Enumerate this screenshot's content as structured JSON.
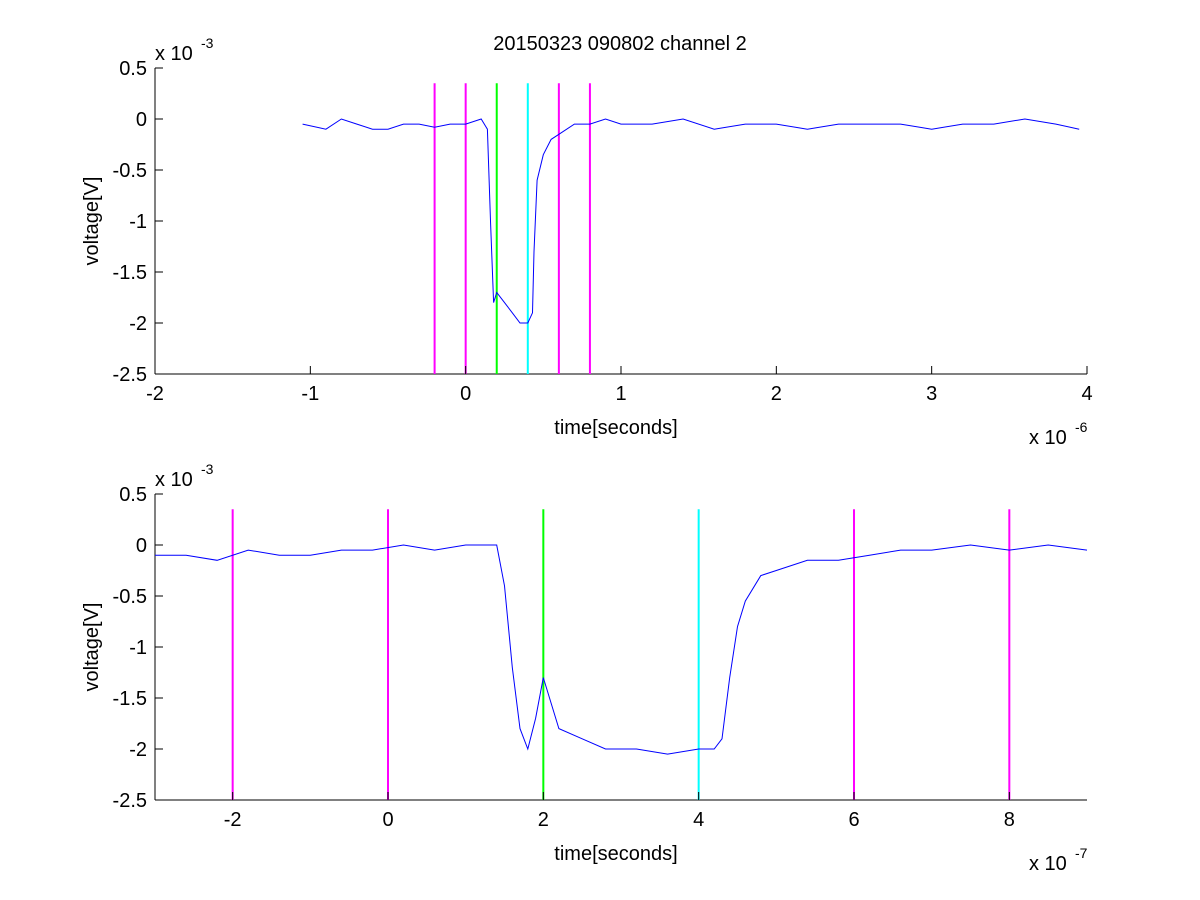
{
  "figure_title": "20150323 090802 channel 2",
  "colors": {
    "signal": "#0000ff",
    "marker_magenta": "#ff00ff",
    "marker_green": "#00ff00",
    "marker_cyan": "#00ffff",
    "axis": "#000000",
    "background": "#ffffff"
  },
  "chart_data": [
    {
      "type": "line",
      "title": "20150323 090802 channel 2",
      "xlabel": "time[seconds]",
      "ylabel": "voltage[V]",
      "x_exponent_label": "x 10",
      "x_exponent": "-6",
      "y_exponent_label": "x 10",
      "y_exponent": "-3",
      "xlim": [
        -2,
        4
      ],
      "ylim": [
        -2.5,
        0.5
      ],
      "xticks": [
        -2,
        -1,
        0,
        1,
        2,
        3,
        4
      ],
      "xtick_labels": [
        "-2",
        "-1",
        "0",
        "1",
        "2",
        "3",
        "4"
      ],
      "yticks": [
        0.5,
        0,
        -0.5,
        -1,
        -1.5,
        -2,
        -2.5
      ],
      "ytick_labels": [
        "0.5",
        "0",
        "-0.5",
        "-1",
        "-1.5",
        "-2",
        "-2.5"
      ],
      "grid": false,
      "series": [
        {
          "x": [
            -1.05,
            -0.9,
            -0.8,
            -0.7,
            -0.6,
            -0.5,
            -0.4,
            -0.3,
            -0.2,
            -0.1,
            0.0,
            0.1,
            0.14,
            0.16,
            0.18,
            0.2,
            0.25,
            0.3,
            0.35,
            0.4,
            0.43,
            0.44,
            0.46,
            0.5,
            0.55,
            0.6,
            0.7,
            0.8,
            0.9,
            1.0,
            1.2,
            1.4,
            1.6,
            1.8,
            2.0,
            2.2,
            2.4,
            2.6,
            2.8,
            3.0,
            3.2,
            3.4,
            3.6,
            3.8,
            3.95
          ],
          "y": [
            -0.05,
            -0.1,
            0.0,
            -0.05,
            -0.1,
            -0.1,
            -0.05,
            -0.05,
            -0.08,
            -0.05,
            -0.05,
            0.0,
            -0.1,
            -1.0,
            -1.8,
            -1.7,
            -1.8,
            -1.9,
            -2.0,
            -2.0,
            -1.9,
            -1.3,
            -0.6,
            -0.35,
            -0.2,
            -0.15,
            -0.05,
            -0.05,
            0.0,
            -0.05,
            -0.05,
            0.0,
            -0.1,
            -0.05,
            -0.05,
            -0.1,
            -0.05,
            -0.05,
            -0.05,
            -0.1,
            -0.05,
            -0.05,
            0.0,
            -0.05,
            -0.1
          ]
        }
      ],
      "markers": [
        {
          "x": -0.2,
          "color": "magenta"
        },
        {
          "x": 0.0,
          "color": "magenta"
        },
        {
          "x": 0.2,
          "color": "green"
        },
        {
          "x": 0.4,
          "color": "cyan"
        },
        {
          "x": 0.6,
          "color": "magenta"
        },
        {
          "x": 0.8,
          "color": "magenta"
        }
      ],
      "marker_y_range": [
        -2.5,
        0.35
      ]
    },
    {
      "type": "line",
      "title": "",
      "xlabel": "time[seconds]",
      "ylabel": "voltage[V]",
      "x_exponent_label": "x 10",
      "x_exponent": "-7",
      "y_exponent_label": "x 10",
      "y_exponent": "-3",
      "xlim": [
        -3,
        9
      ],
      "ylim": [
        -2.5,
        0.5
      ],
      "xticks": [
        -2,
        0,
        2,
        4,
        6,
        8
      ],
      "xtick_labels": [
        "-2",
        "0",
        "2",
        "4",
        "6",
        "8"
      ],
      "yticks": [
        0.5,
        0,
        -0.5,
        -1,
        -1.5,
        -2,
        -2.5
      ],
      "ytick_labels": [
        "0.5",
        "0",
        "-0.5",
        "-1",
        "-1.5",
        "-2",
        "-2.5"
      ],
      "grid": false,
      "series": [
        {
          "x": [
            -3.0,
            -2.6,
            -2.2,
            -1.8,
            -1.4,
            -1.0,
            -0.6,
            -0.2,
            0.2,
            0.6,
            1.0,
            1.4,
            1.5,
            1.6,
            1.7,
            1.8,
            1.9,
            2.0,
            2.2,
            2.5,
            2.8,
            3.2,
            3.6,
            4.0,
            4.2,
            4.3,
            4.4,
            4.5,
            4.6,
            4.8,
            5.0,
            5.4,
            5.8,
            6.2,
            6.6,
            7.0,
            7.5,
            8.0,
            8.5,
            9.0
          ],
          "y": [
            -0.1,
            -0.1,
            -0.15,
            -0.05,
            -0.1,
            -0.1,
            -0.05,
            -0.05,
            0.0,
            -0.05,
            0.0,
            0.0,
            -0.4,
            -1.2,
            -1.8,
            -2.0,
            -1.7,
            -1.3,
            -1.8,
            -1.9,
            -2.0,
            -2.0,
            -2.05,
            -2.0,
            -2.0,
            -1.9,
            -1.3,
            -0.8,
            -0.55,
            -0.3,
            -0.25,
            -0.15,
            -0.15,
            -0.1,
            -0.05,
            -0.05,
            0.0,
            -0.05,
            0.0,
            -0.05
          ]
        }
      ],
      "markers": [
        {
          "x": -2,
          "color": "magenta"
        },
        {
          "x": 0,
          "color": "magenta"
        },
        {
          "x": 2,
          "color": "green"
        },
        {
          "x": 4,
          "color": "cyan"
        },
        {
          "x": 6,
          "color": "magenta"
        },
        {
          "x": 8,
          "color": "magenta"
        }
      ],
      "marker_y_range": [
        -2.5,
        0.35
      ]
    }
  ]
}
